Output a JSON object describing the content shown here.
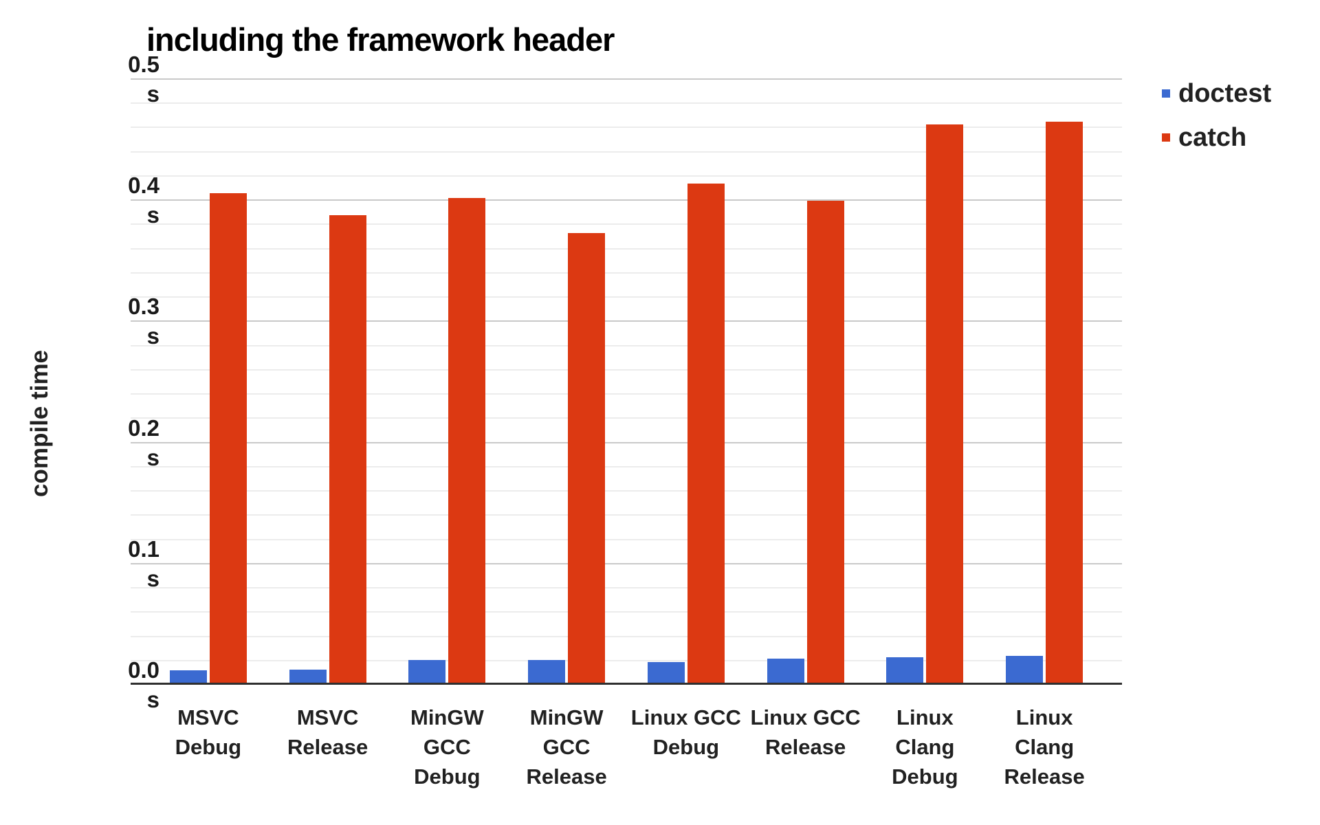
{
  "page": {
    "background": "#ffffff"
  },
  "chart_data": {
    "type": "bar",
    "title": "including the framework header",
    "xlabel": "",
    "ylabel": "compile time",
    "unit": "s",
    "ymax": 0.5,
    "yticks": [
      0.5,
      0.4,
      0.3,
      0.2,
      0.1,
      0.0
    ],
    "minor_tick_step": 0.02,
    "grid": true,
    "legend_position": "top-right",
    "axis_color": "#2f2f2f",
    "major_grid_color": "#c9c9c9",
    "minor_grid_color": "#ececec",
    "categories": [
      "MSVC Debug",
      "MSVC Release",
      "MinGW GCC Debug",
      "MinGW GCC Release",
      "Linux GCC Debug",
      "Linux GCC Release",
      "Linux Clang Debug",
      "Linux Clang Release"
    ],
    "series": [
      {
        "name": "doctest",
        "color": "#3b6ad1",
        "values": [
          0.01,
          0.011,
          0.019,
          0.019,
          0.017,
          0.02,
          0.021,
          0.022
        ]
      },
      {
        "name": "catch",
        "color": "#dc3912",
        "values": [
          0.404,
          0.386,
          0.4,
          0.371,
          0.412,
          0.398,
          0.461,
          0.463
        ]
      }
    ]
  }
}
